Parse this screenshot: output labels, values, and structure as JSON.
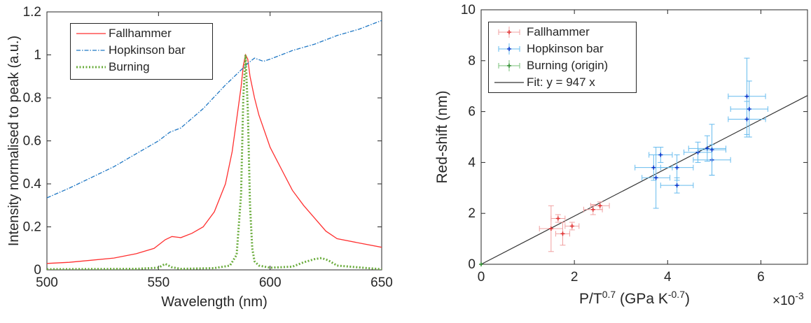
{
  "chart_data": [
    {
      "type": "line",
      "xlabel": "Wavelength (nm)",
      "ylabel": "Intensity normalised to peak (a.u.)",
      "xlim": [
        500,
        650
      ],
      "ylim": [
        0,
        1.2
      ],
      "xticks": [
        "500",
        "550",
        "600",
        "650"
      ],
      "yticks": [
        "0",
        "0.2",
        "0.4",
        "0.6",
        "0.8",
        "1",
        "1.2"
      ],
      "grid": false,
      "legend_position": "top-left",
      "series": [
        {
          "name": "Fallhammer",
          "color": "#ff3030",
          "style": "solid",
          "x": [
            500,
            510,
            520,
            530,
            540,
            548,
            553,
            556,
            560,
            565,
            570,
            575,
            580,
            583,
            585,
            587,
            588,
            589,
            590,
            591,
            593,
            595,
            600,
            605,
            610,
            615,
            620,
            625,
            630,
            640,
            650
          ],
          "y": [
            0.03,
            0.035,
            0.045,
            0.055,
            0.075,
            0.1,
            0.14,
            0.155,
            0.15,
            0.17,
            0.2,
            0.27,
            0.4,
            0.55,
            0.7,
            0.85,
            0.95,
            1.0,
            0.98,
            0.9,
            0.8,
            0.72,
            0.57,
            0.47,
            0.37,
            0.3,
            0.24,
            0.18,
            0.145,
            0.125,
            0.105
          ]
        },
        {
          "name": "Hopkinson bar",
          "color": "#1f77c4",
          "style": "dashdot",
          "x": [
            500,
            510,
            520,
            530,
            540,
            550,
            555,
            560,
            570,
            580,
            585,
            590,
            593,
            597,
            600,
            605,
            610,
            620,
            630,
            640,
            650
          ],
          "y": [
            0.335,
            0.38,
            0.43,
            0.48,
            0.54,
            0.6,
            0.64,
            0.66,
            0.75,
            0.86,
            0.91,
            0.96,
            0.985,
            0.97,
            0.98,
            1.0,
            1.02,
            1.05,
            1.09,
            1.12,
            1.16
          ]
        },
        {
          "name": "Burning",
          "color": "#6aac3c",
          "style": "dotted",
          "x": [
            500,
            540,
            550,
            553,
            556,
            560,
            575,
            582,
            585,
            587,
            588,
            589,
            590,
            591,
            592,
            593,
            595,
            600,
            610,
            615,
            620,
            623,
            626,
            630,
            650
          ],
          "y": [
            0.003,
            0.005,
            0.01,
            0.028,
            0.012,
            0.005,
            0.008,
            0.02,
            0.07,
            0.35,
            0.8,
            1.0,
            0.75,
            0.3,
            0.1,
            0.04,
            0.02,
            0.01,
            0.015,
            0.035,
            0.05,
            0.055,
            0.045,
            0.02,
            0.003
          ]
        }
      ]
    },
    {
      "type": "scatter",
      "xlabel": "P/T",
      "xlabel_exponent": "0.7",
      "xlabel_units_prefix": "(GPa K",
      "xlabel_units_exponent": "-0.7",
      "xlabel_units_suffix": ")",
      "ylabel": "Red-shift (nm)",
      "xlim": [
        0,
        7
      ],
      "ylim": [
        0,
        10
      ],
      "x_multiplier_base": "×10",
      "x_multiplier_exponent": "-3",
      "xticks": [
        "0",
        "2",
        "4",
        "6"
      ],
      "yticks": [
        "0",
        "2",
        "4",
        "6",
        "8",
        "10"
      ],
      "grid": false,
      "legend_position": "top-left",
      "series": [
        {
          "name": "Fallhammer",
          "color": "#e03030",
          "errbar_color": "#f0a0a0",
          "points": [
            {
              "x": 1.5,
              "y": 1.4,
              "xerr": 0.25,
              "yerr": 0.9
            },
            {
              "x": 1.65,
              "y": 1.8,
              "xerr": 0.15,
              "yerr": 0.15
            },
            {
              "x": 1.75,
              "y": 1.2,
              "xerr": 0.15,
              "yerr": 0.45
            },
            {
              "x": 1.95,
              "y": 1.5,
              "xerr": 0.15,
              "yerr": 0.15
            },
            {
              "x": 2.4,
              "y": 2.15,
              "xerr": 0.2,
              "yerr": 0.2
            },
            {
              "x": 2.55,
              "y": 2.3,
              "xerr": 0.2,
              "yerr": 0.15
            }
          ]
        },
        {
          "name": "Hopkinson bar",
          "color": "#0033cc",
          "errbar_color": "#66bbee",
          "points": [
            {
              "x": 3.7,
              "y": 3.8,
              "xerr": 0.4,
              "yerr": 0.5
            },
            {
              "x": 3.75,
              "y": 3.4,
              "xerr": 0.3,
              "yerr": 1.2
            },
            {
              "x": 3.85,
              "y": 4.3,
              "xerr": 0.25,
              "yerr": 0.3
            },
            {
              "x": 4.2,
              "y": 3.8,
              "xerr": 0.35,
              "yerr": 0.5
            },
            {
              "x": 4.2,
              "y": 3.1,
              "xerr": 0.35,
              "yerr": 0.3
            },
            {
              "x": 4.65,
              "y": 4.4,
              "xerr": 0.3,
              "yerr": 0.4
            },
            {
              "x": 4.85,
              "y": 4.55,
              "xerr": 0.4,
              "yerr": 0.5
            },
            {
              "x": 4.95,
              "y": 4.1,
              "xerr": 0.4,
              "yerr": 0.6
            },
            {
              "x": 4.95,
              "y": 4.5,
              "xerr": 0.3,
              "yerr": 1.0
            },
            {
              "x": 5.7,
              "y": 6.6,
              "xerr": 0.4,
              "yerr": 1.5
            },
            {
              "x": 5.7,
              "y": 5.7,
              "xerr": 0.4,
              "yerr": 0.7
            },
            {
              "x": 5.75,
              "y": 6.1,
              "xerr": 0.4,
              "yerr": 1.1
            }
          ]
        },
        {
          "name": "Burning (origin)",
          "color": "#2a8a2a",
          "errbar_color": "#7ac07a",
          "points": [
            {
              "x": 0,
              "y": 0,
              "xerr": 0,
              "yerr": 0
            }
          ]
        },
        {
          "name": "Fit: y = 947 x",
          "color": "#333333",
          "type": "line",
          "x": [
            0,
            7
          ],
          "y": [
            0,
            6.63
          ]
        }
      ]
    }
  ]
}
